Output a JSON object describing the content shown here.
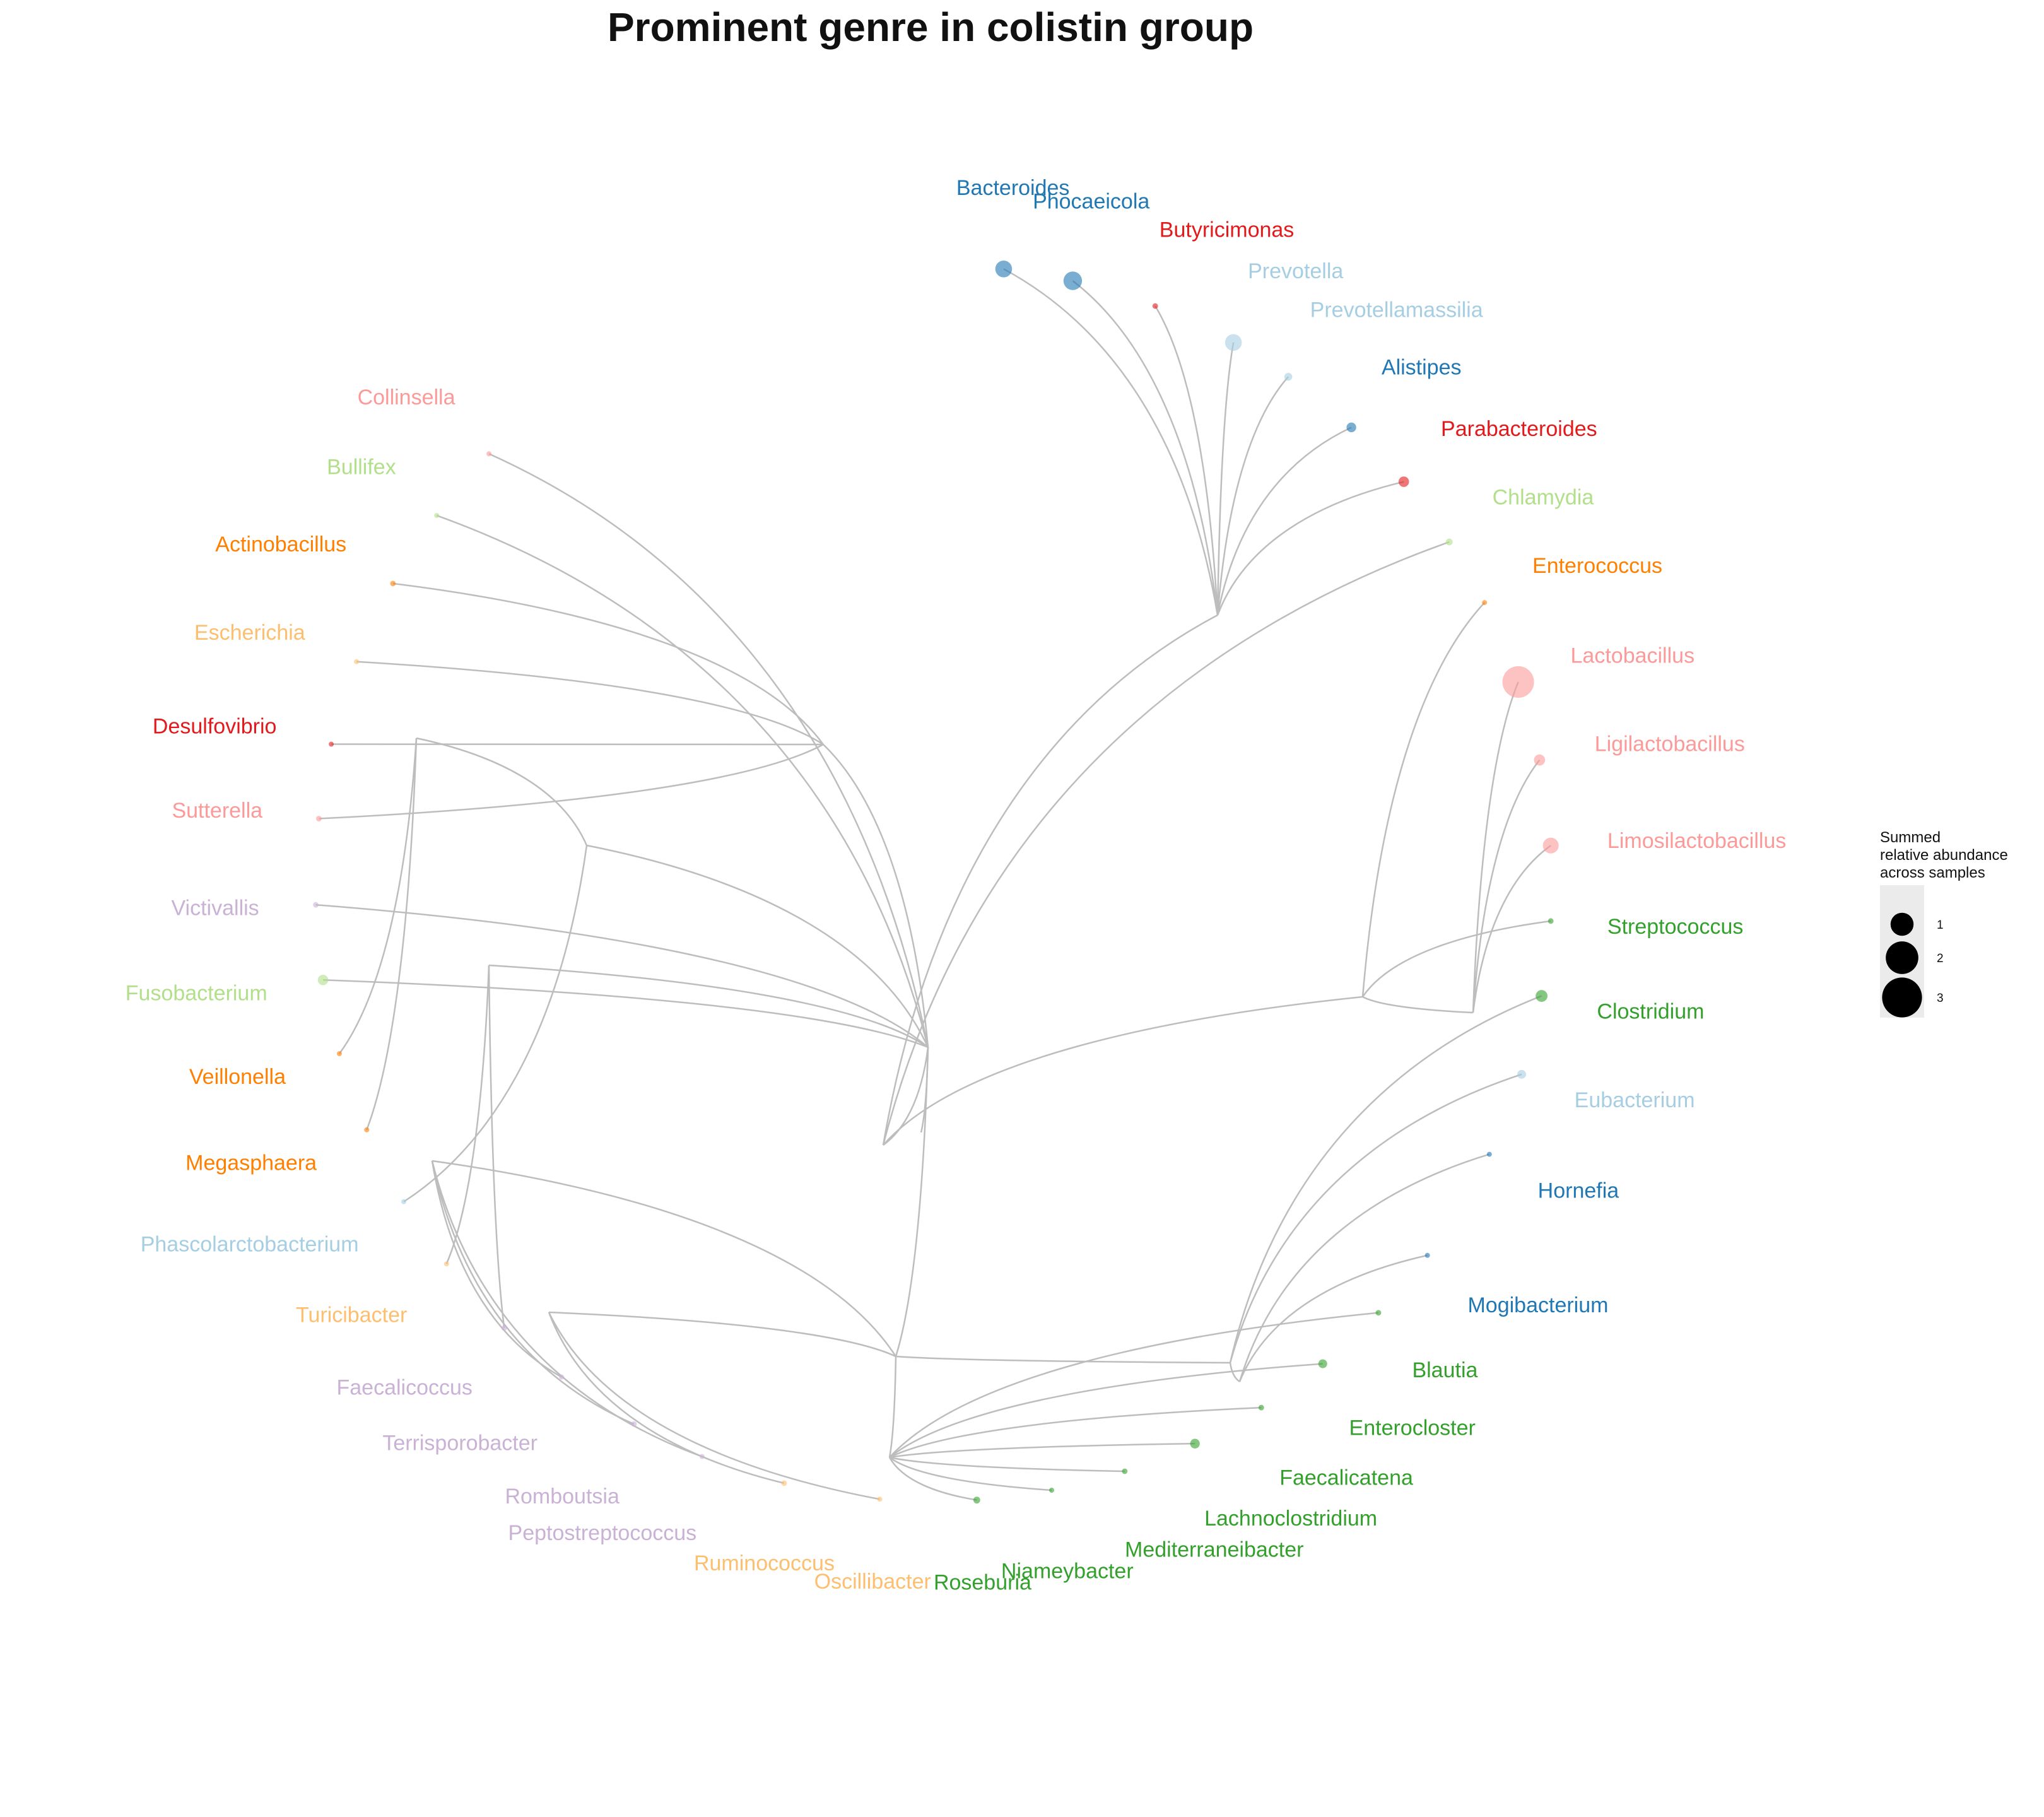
{
  "title": "Prominent genre in colistin group",
  "colors": {
    "branch": "#bdbdbd",
    "legend_bg": "#ebebeb",
    "legend_marker": "#000000"
  },
  "legend": {
    "title_lines": [
      "Summed",
      "relative abundance",
      "across samples"
    ],
    "keys": [
      {
        "label": "1",
        "value": 1
      },
      {
        "label": "2",
        "value": 2
      },
      {
        "label": "3",
        "value": 3
      }
    ]
  },
  "tips": [
    {
      "id": "t0",
      "name": "Bacteroides",
      "color": "#1f78b4",
      "abundance": 0.9
    },
    {
      "id": "t1",
      "name": "Phocaeicola",
      "color": "#1f78b4",
      "abundance": 1.1
    },
    {
      "id": "t2",
      "name": "Butyricimonas",
      "color": "#e31a1c",
      "abundance": 0.1
    },
    {
      "id": "t3",
      "name": "Prevotella",
      "color": "#a6cee3",
      "abundance": 0.9
    },
    {
      "id": "t4",
      "name": "Prevotellamassilia",
      "color": "#a6cee3",
      "abundance": 0.2
    },
    {
      "id": "t5",
      "name": "Alistipes",
      "color": "#1f78b4",
      "abundance": 0.3
    },
    {
      "id": "t6",
      "name": "Parabacteroides",
      "color": "#e31a1c",
      "abundance": 0.35
    },
    {
      "id": "t7",
      "name": "Chlamydia",
      "color": "#b2df8a",
      "abundance": 0.15
    },
    {
      "id": "t8",
      "name": "Enterococcus",
      "color": "#ff7f00",
      "abundance": 0.05
    },
    {
      "id": "t9",
      "name": "Lactobacillus",
      "color": "#fb9a99",
      "abundance": 3.2
    },
    {
      "id": "t10",
      "name": "Ligilactobacillus",
      "color": "#fb9a99",
      "abundance": 0.4
    },
    {
      "id": "t11",
      "name": "Limosilactobacillus",
      "color": "#fb9a99",
      "abundance": 0.8
    },
    {
      "id": "t12",
      "name": "Streptococcus",
      "color": "#33a02c",
      "abundance": 0.1
    },
    {
      "id": "t13",
      "name": "Clostridium",
      "color": "#33a02c",
      "abundance": 0.45
    },
    {
      "id": "t14",
      "name": "Eubacterium",
      "color": "#a6cee3",
      "abundance": 0.25
    },
    {
      "id": "t15",
      "name": "Hornefia",
      "color": "#1f78b4",
      "abundance": 0.05
    },
    {
      "id": "t16",
      "name": "Mogibacterium",
      "color": "#1f78b4",
      "abundance": 0.05
    },
    {
      "id": "t17",
      "name": "Blautia",
      "color": "#33a02c",
      "abundance": 0.1
    },
    {
      "id": "t18",
      "name": "Enterocloster",
      "color": "#33a02c",
      "abundance": 0.25
    },
    {
      "id": "t19",
      "name": "Faecalicatena",
      "color": "#33a02c",
      "abundance": 0.1
    },
    {
      "id": "t20",
      "name": "Lachnoclostridium",
      "color": "#33a02c",
      "abundance": 0.3
    },
    {
      "id": "t21",
      "name": "Mediterraneibacter",
      "color": "#33a02c",
      "abundance": 0.1
    },
    {
      "id": "t22",
      "name": "Niameybacter",
      "color": "#33a02c",
      "abundance": 0.08
    },
    {
      "id": "t23",
      "name": "Roseburia",
      "color": "#33a02c",
      "abundance": 0.15
    },
    {
      "id": "t24",
      "name": "Oscillibacter",
      "color": "#fdbf6f",
      "abundance": 0.05
    },
    {
      "id": "t25",
      "name": "Ruminococcus",
      "color": "#fdbf6f",
      "abundance": 0.1
    },
    {
      "id": "t26",
      "name": "Peptostreptococcus",
      "color": "#cab2d6",
      "abundance": 0.05
    },
    {
      "id": "t27",
      "name": "Romboutsia",
      "color": "#cab2d6",
      "abundance": 0.1
    },
    {
      "id": "t28",
      "name": "Terrisporobacter",
      "color": "#cab2d6",
      "abundance": 0.08
    },
    {
      "id": "t29",
      "name": "Faecalicoccus",
      "color": "#cab2d6",
      "abundance": 0.1
    },
    {
      "id": "t30",
      "name": "Turicibacter",
      "color": "#fdbf6f",
      "abundance": 0.05
    },
    {
      "id": "t31",
      "name": "Phascolarctobacterium",
      "color": "#a6cee3",
      "abundance": 0.02
    },
    {
      "id": "t32",
      "name": "Megasphaera",
      "color": "#ff7f00",
      "abundance": 0.02
    },
    {
      "id": "t33",
      "name": "Veillonella",
      "color": "#ff7f00",
      "abundance": 0.05
    },
    {
      "id": "t34",
      "name": "Fusobacterium",
      "color": "#b2df8a",
      "abundance": 0.35
    },
    {
      "id": "t35",
      "name": "Victivallis",
      "color": "#cab2d6",
      "abundance": 0.1
    },
    {
      "id": "t36",
      "name": "Sutterella",
      "color": "#fb9a99",
      "abundance": 0.1
    },
    {
      "id": "t37",
      "name": "Desulfovibrio",
      "color": "#e31a1c",
      "abundance": 0.08
    },
    {
      "id": "t38",
      "name": "Escherichia",
      "color": "#fdbf6f",
      "abundance": 0.05
    },
    {
      "id": "t39",
      "name": "Actinobacillus",
      "color": "#ff7f00",
      "abundance": 0.1
    },
    {
      "id": "t40",
      "name": "Bullifex",
      "color": "#b2df8a",
      "abundance": 0.08
    },
    {
      "id": "t41",
      "name": "Collinsella",
      "color": "#fb9a99",
      "abundance": 0.08
    }
  ],
  "edges": [
    [
      "root",
      "n1"
    ],
    [
      "root",
      "n13"
    ],
    [
      "root",
      "n5"
    ],
    [
      "n1",
      "n2"
    ],
    [
      "n1",
      "n7"
    ],
    [
      "n2",
      "t0"
    ],
    [
      "n2",
      "t1"
    ],
    [
      "n2",
      "t2"
    ],
    [
      "n2",
      "t3"
    ],
    [
      "n2",
      "t4"
    ],
    [
      "n2",
      "t5"
    ],
    [
      "n2",
      "t6"
    ],
    [
      "n1",
      "t7"
    ],
    [
      "n7",
      "t8"
    ],
    [
      "n7",
      "n8"
    ],
    [
      "n7",
      "t12"
    ],
    [
      "n8",
      "t9"
    ],
    [
      "n8",
      "t10"
    ],
    [
      "n8",
      "t11"
    ],
    [
      "n5",
      "n6"
    ],
    [
      "n5",
      "n9"
    ],
    [
      "n5",
      "n12"
    ],
    [
      "n6",
      "t13"
    ],
    [
      "n6",
      "t14"
    ],
    [
      "n6",
      "n6b"
    ],
    [
      "n6b",
      "t15"
    ],
    [
      "n6b",
      "t16"
    ],
    [
      "n9",
      "t17"
    ],
    [
      "n9",
      "t18"
    ],
    [
      "n9",
      "t19"
    ],
    [
      "n9",
      "t20"
    ],
    [
      "n9",
      "t21"
    ],
    [
      "n9",
      "t22"
    ],
    [
      "n9",
      "t23"
    ],
    [
      "n12",
      "t24"
    ],
    [
      "n12",
      "t25"
    ],
    [
      "n5",
      "n10"
    ],
    [
      "n10",
      "t26"
    ],
    [
      "n10",
      "t27"
    ],
    [
      "n10",
      "t28"
    ],
    [
      "root",
      "n11"
    ],
    [
      "n11",
      "t29"
    ],
    [
      "n11",
      "t30"
    ],
    [
      "root",
      "n3"
    ],
    [
      "n3",
      "t31"
    ],
    [
      "n3",
      "n3b"
    ],
    [
      "n3b",
      "t32"
    ],
    [
      "n3b",
      "t33"
    ],
    [
      "root",
      "t34"
    ],
    [
      "root",
      "t35"
    ],
    [
      "root",
      "n4"
    ],
    [
      "n4",
      "t36"
    ],
    [
      "n4",
      "t37"
    ],
    [
      "n4",
      "t38"
    ],
    [
      "n4",
      "t39"
    ],
    [
      "root",
      "t40"
    ],
    [
      "root",
      "t41"
    ]
  ]
}
